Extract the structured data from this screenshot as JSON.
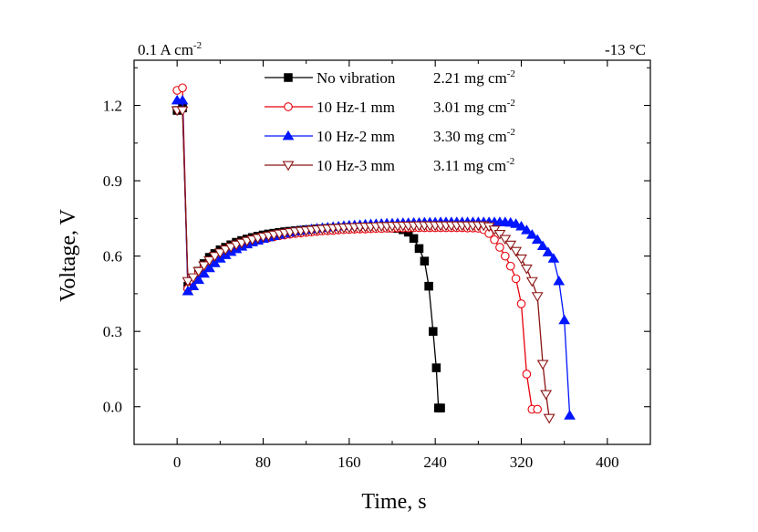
{
  "chart_data": {
    "type": "line",
    "title": "",
    "xlabel": "Time, s",
    "ylabel": "Voltage, V",
    "xlim": [
      -40,
      440
    ],
    "ylim": [
      -0.15,
      1.38
    ],
    "xticks": [
      0,
      80,
      160,
      240,
      320,
      400
    ],
    "yticks": [
      0.0,
      0.3,
      0.6,
      0.9,
      1.2
    ],
    "xtick_labels": [
      "0",
      "80",
      "160",
      "240",
      "320",
      "400"
    ],
    "ytick_labels": [
      "0.0",
      "0.3",
      "0.6",
      "0.9",
      "1.2"
    ],
    "annotations": {
      "left": {
        "prefix": "0.1 A cm",
        "sup": "-2"
      },
      "right": {
        "text": "-13 °C"
      }
    },
    "legend_position": "top-center",
    "series": [
      {
        "name": "No vibration",
        "loading": "2.21 mg cm",
        "loading_sup": "-2",
        "color": "#000000",
        "marker": "square",
        "x": [
          0,
          5,
          10,
          15,
          20,
          25,
          30,
          35,
          40,
          45,
          50,
          55,
          60,
          65,
          70,
          75,
          80,
          85,
          90,
          95,
          100,
          105,
          110,
          115,
          120,
          125,
          130,
          135,
          140,
          145,
          150,
          155,
          160,
          165,
          170,
          175,
          180,
          185,
          190,
          195,
          200,
          205,
          210,
          215,
          220,
          225,
          230,
          234,
          238,
          241,
          243,
          245
        ],
        "y": [
          1.18,
          1.19,
          0.48,
          0.51,
          0.54,
          0.57,
          0.595,
          0.61,
          0.625,
          0.635,
          0.645,
          0.655,
          0.662,
          0.668,
          0.674,
          0.679,
          0.684,
          0.688,
          0.691,
          0.694,
          0.697,
          0.699,
          0.701,
          0.703,
          0.705,
          0.706,
          0.708,
          0.709,
          0.71,
          0.711,
          0.712,
          0.713,
          0.714,
          0.714,
          0.715,
          0.715,
          0.715,
          0.715,
          0.714,
          0.713,
          0.712,
          0.71,
          0.705,
          0.695,
          0.67,
          0.63,
          0.58,
          0.48,
          0.3,
          0.155,
          -0.005,
          -0.005
        ]
      },
      {
        "name": "10 Hz-1 mm",
        "loading": "3.01 mg cm",
        "loading_sup": "-2",
        "color": "#e8000b",
        "marker": "circle",
        "x": [
          0,
          5,
          10,
          15,
          20,
          25,
          30,
          35,
          40,
          45,
          50,
          55,
          60,
          65,
          70,
          75,
          80,
          85,
          90,
          95,
          100,
          105,
          110,
          115,
          120,
          125,
          130,
          135,
          140,
          145,
          150,
          155,
          160,
          165,
          170,
          175,
          180,
          185,
          190,
          195,
          200,
          205,
          210,
          215,
          220,
          225,
          230,
          235,
          240,
          245,
          250,
          255,
          260,
          265,
          270,
          275,
          280,
          285,
          290,
          295,
          300,
          305,
          310,
          315,
          320,
          325,
          330,
          335
        ],
        "y": [
          1.26,
          1.27,
          0.47,
          0.5,
          0.53,
          0.555,
          0.575,
          0.592,
          0.606,
          0.618,
          0.628,
          0.637,
          0.645,
          0.652,
          0.658,
          0.664,
          0.669,
          0.673,
          0.677,
          0.681,
          0.684,
          0.687,
          0.69,
          0.692,
          0.694,
          0.696,
          0.698,
          0.7,
          0.701,
          0.702,
          0.704,
          0.705,
          0.706,
          0.707,
          0.708,
          0.708,
          0.709,
          0.71,
          0.71,
          0.711,
          0.711,
          0.712,
          0.712,
          0.712,
          0.713,
          0.713,
          0.713,
          0.713,
          0.713,
          0.713,
          0.713,
          0.713,
          0.713,
          0.713,
          0.712,
          0.712,
          0.711,
          0.705,
          0.69,
          0.665,
          0.635,
          0.6,
          0.56,
          0.51,
          0.41,
          0.13,
          -0.01,
          -0.01
        ]
      },
      {
        "name": "10 Hz-2 mm",
        "loading": "3.30 mg cm",
        "loading_sup": "-2",
        "color": "#0016ff",
        "marker": "triangle-up",
        "x": [
          0,
          5,
          10,
          15,
          20,
          25,
          30,
          35,
          40,
          45,
          50,
          55,
          60,
          65,
          70,
          75,
          80,
          85,
          90,
          95,
          100,
          105,
          110,
          115,
          120,
          125,
          130,
          135,
          140,
          145,
          150,
          155,
          160,
          165,
          170,
          175,
          180,
          185,
          190,
          195,
          200,
          205,
          210,
          215,
          220,
          225,
          230,
          235,
          240,
          245,
          250,
          255,
          260,
          265,
          270,
          275,
          280,
          285,
          290,
          295,
          300,
          305,
          310,
          315,
          320,
          325,
          330,
          335,
          340,
          345,
          350,
          355,
          360,
          365
        ],
        "y": [
          1.22,
          1.22,
          0.46,
          0.48,
          0.505,
          0.53,
          0.552,
          0.572,
          0.59,
          0.604,
          0.617,
          0.628,
          0.638,
          0.647,
          0.655,
          0.662,
          0.669,
          0.675,
          0.68,
          0.685,
          0.69,
          0.694,
          0.698,
          0.701,
          0.704,
          0.707,
          0.71,
          0.712,
          0.714,
          0.716,
          0.718,
          0.72,
          0.722,
          0.723,
          0.724,
          0.726,
          0.727,
          0.728,
          0.729,
          0.73,
          0.73,
          0.731,
          0.732,
          0.732,
          0.733,
          0.733,
          0.734,
          0.734,
          0.734,
          0.735,
          0.735,
          0.735,
          0.735,
          0.735,
          0.735,
          0.735,
          0.735,
          0.735,
          0.735,
          0.735,
          0.735,
          0.735,
          0.733,
          0.728,
          0.718,
          0.703,
          0.685,
          0.665,
          0.64,
          0.615,
          0.59,
          0.5,
          0.345,
          -0.035
        ]
      },
      {
        "name": "10 Hz-3 mm",
        "loading": "3.11 mg cm",
        "loading_sup": "-2",
        "color": "#8b1414",
        "marker": "triangle-down",
        "x": [
          0,
          5,
          10,
          15,
          20,
          25,
          30,
          35,
          40,
          45,
          50,
          55,
          60,
          65,
          70,
          75,
          80,
          85,
          90,
          95,
          100,
          105,
          110,
          115,
          120,
          125,
          130,
          135,
          140,
          145,
          150,
          155,
          160,
          165,
          170,
          175,
          180,
          185,
          190,
          195,
          200,
          205,
          210,
          215,
          220,
          225,
          230,
          235,
          240,
          245,
          250,
          255,
          260,
          265,
          270,
          275,
          280,
          285,
          290,
          295,
          300,
          305,
          310,
          315,
          320,
          325,
          330,
          335,
          340,
          343,
          346
        ],
        "y": [
          1.18,
          1.18,
          0.5,
          0.515,
          0.54,
          0.563,
          0.583,
          0.6,
          0.614,
          0.626,
          0.636,
          0.645,
          0.653,
          0.66,
          0.666,
          0.672,
          0.677,
          0.681,
          0.685,
          0.689,
          0.692,
          0.695,
          0.698,
          0.7,
          0.702,
          0.704,
          0.706,
          0.708,
          0.709,
          0.711,
          0.712,
          0.713,
          0.714,
          0.715,
          0.716,
          0.717,
          0.717,
          0.718,
          0.719,
          0.719,
          0.72,
          0.72,
          0.721,
          0.721,
          0.721,
          0.722,
          0.722,
          0.722,
          0.722,
          0.722,
          0.722,
          0.722,
          0.722,
          0.722,
          0.722,
          0.722,
          0.722,
          0.722,
          0.718,
          0.705,
          0.688,
          0.668,
          0.645,
          0.62,
          0.59,
          0.55,
          0.5,
          0.44,
          0.17,
          0.05,
          -0.045
        ]
      }
    ]
  }
}
